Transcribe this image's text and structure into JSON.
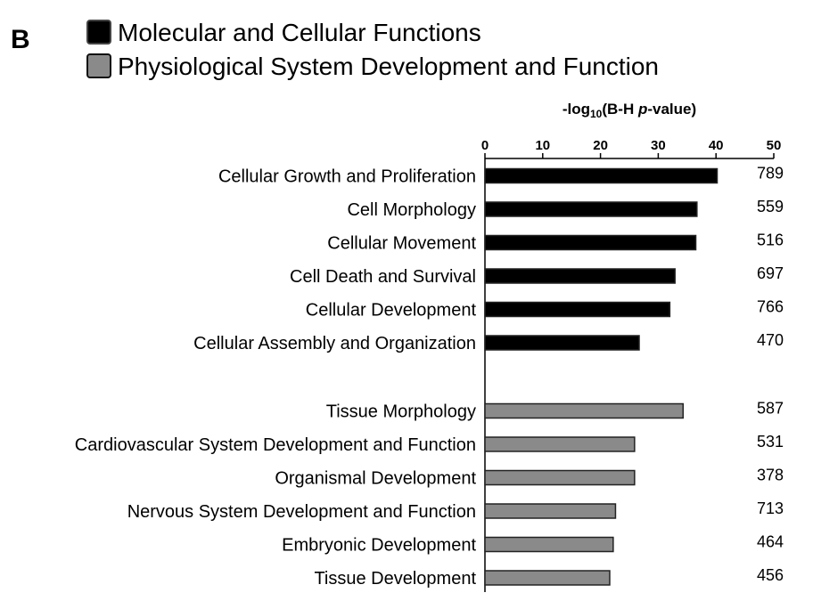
{
  "panel_label": "B",
  "chart_data": {
    "type": "bar",
    "orientation": "horizontal",
    "title": "",
    "xlabel": {
      "prefix": "-log",
      "subscript": "10",
      "mid": "(B-H ",
      "italic": "p",
      "suffix": "-value)"
    },
    "xlim": [
      0,
      50
    ],
    "xticks": [
      0,
      10,
      20,
      30,
      40,
      50
    ],
    "xtick_position": "top",
    "legend": [
      {
        "name": "Molecular and Cellular Functions",
        "color": "#000000"
      },
      {
        "name": "Physiological System Development and Function",
        "color": "#8a8a8a"
      }
    ],
    "legend_placement": "top-left",
    "series": [
      {
        "name": "Molecular and Cellular Functions",
        "color": "#000000",
        "categories": [
          "Cellular Growth and Proliferation",
          "Cell Morphology",
          "Cellular Movement",
          "Cell Death and Survival",
          "Cellular Development",
          "Cellular Assembly and Organization"
        ],
        "values": [
          40.2,
          36.7,
          36.5,
          32.9,
          32.0,
          26.7
        ],
        "counts": [
          "789",
          "559",
          "516",
          "697",
          "766",
          "470"
        ]
      },
      {
        "name": "Physiological System Development and Function",
        "color": "#8a8a8a",
        "categories": [
          "Tissue Morphology",
          "Cardiovascular System Development and Function",
          "Organismal Development",
          "Nervous System Development and Function",
          "Embryonic Development",
          "Tissue Development"
        ],
        "values": [
          34.3,
          25.9,
          25.9,
          22.6,
          22.2,
          21.6
        ],
        "counts": [
          "587",
          "531",
          "378",
          "713",
          "464",
          "456"
        ]
      }
    ],
    "grid": false
  }
}
